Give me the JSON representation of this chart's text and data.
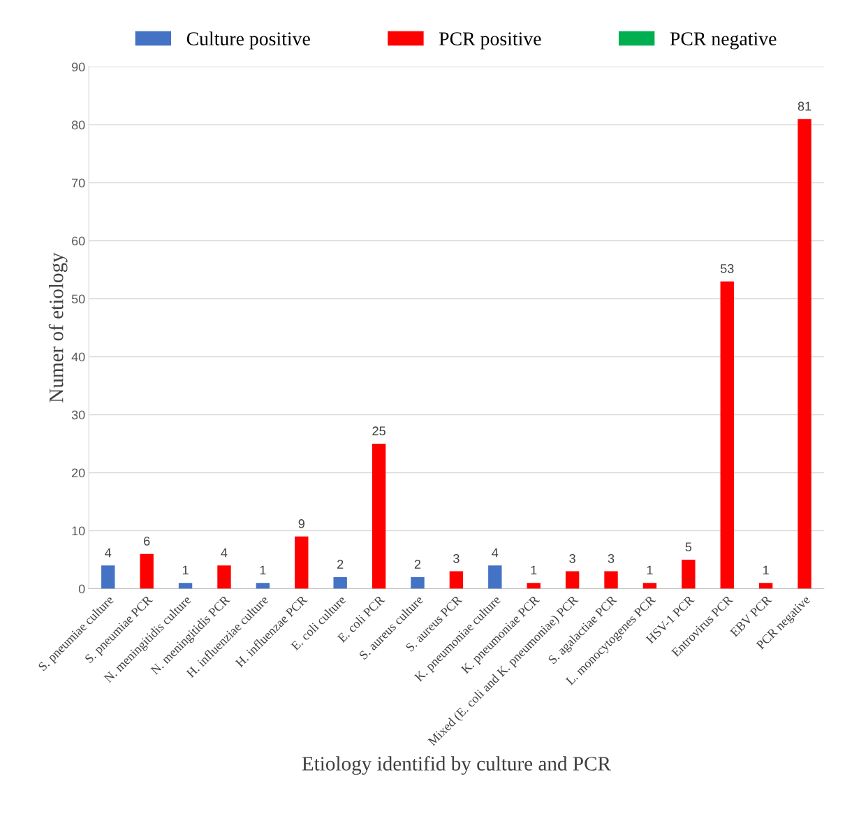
{
  "chart_data": {
    "type": "bar",
    "xlabel": "Etiology identifid by culture and PCR",
    "ylabel": "Numer of etiology",
    "categories": [
      "S. pneumiae culture",
      "S. pneumiae PCR",
      "N. meningitidis culture",
      "N. meningitidis PCR",
      "H. influenziae culture",
      "H. influenzae PCR",
      "E. coli culture",
      "E. coli PCR",
      "S. aureus culture",
      "S. aureus PCR",
      "K. pneumoniae culture",
      "K. pneumoniae PCR",
      "Mixed (E. coli and K. pneumoniae) PCR",
      "S. agalactiae PCR",
      "L. monocytogenes PCR",
      "HSV-1 PCR",
      "Entrovirus PCR",
      "EBV PCR",
      "PCR negative"
    ],
    "series": [
      {
        "name": "Culture positive",
        "color": "#4472c4",
        "values": [
          4,
          null,
          1,
          null,
          1,
          null,
          2,
          null,
          2,
          null,
          4,
          null,
          null,
          null,
          null,
          null,
          null,
          null,
          null
        ]
      },
      {
        "name": "PCR positive",
        "color": "#ff0000",
        "values": [
          null,
          6,
          null,
          4,
          null,
          9,
          null,
          25,
          null,
          3,
          null,
          1,
          3,
          3,
          1,
          5,
          53,
          1,
          81
        ]
      },
      {
        "name": "PCR negative",
        "color": "#00b050",
        "values": [
          null,
          null,
          null,
          null,
          null,
          null,
          null,
          null,
          null,
          null,
          null,
          null,
          null,
          null,
          null,
          null,
          null,
          null,
          null
        ]
      }
    ],
    "ylim": [
      0,
      90
    ],
    "yticks": [
      0,
      10,
      20,
      30,
      40,
      50,
      60,
      70,
      80,
      90
    ],
    "grid": "y",
    "legend": "top",
    "data_labels": true
  }
}
